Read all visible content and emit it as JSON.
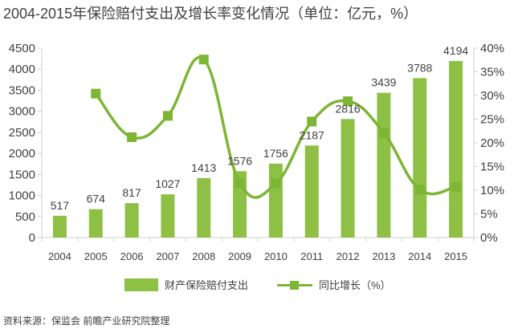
{
  "title": "2004-2015年保险赔付支出及增长率变化情况（单位：亿元，%）",
  "source": "资料来源：保监会 前瞻产业研究院整理",
  "legend": {
    "bar_label": "财产保险赔付支出",
    "line_label": "同比增长（%）"
  },
  "colors": {
    "bar": "#8ec045",
    "line": "#7db534",
    "axis": "#d0d0d0",
    "text": "#404040"
  },
  "chart_data": {
    "type": "bar+line",
    "categories": [
      "2004",
      "2005",
      "2006",
      "2007",
      "2008",
      "2009",
      "2010",
      "2011",
      "2012",
      "2013",
      "2014",
      "2015"
    ],
    "series": [
      {
        "name": "财产保险赔付支出",
        "type": "bar",
        "axis": "left",
        "values": [
          517,
          674,
          817,
          1027,
          1413,
          1576,
          1756,
          2187,
          2816,
          3439,
          3788,
          4194
        ]
      },
      {
        "name": "同比增长（%）",
        "type": "line",
        "axis": "right",
        "values": [
          null,
          30.4,
          21.2,
          25.7,
          37.6,
          11.5,
          11.4,
          24.5,
          28.8,
          22.1,
          10.1,
          10.7
        ]
      }
    ],
    "left_axis": {
      "min": 0,
      "max": 4500,
      "ticks": [
        "0",
        "500",
        "1000",
        "1500",
        "2000",
        "2500",
        "3000",
        "3500",
        "4000",
        "4500"
      ]
    },
    "right_axis": {
      "min": 0,
      "max": 40,
      "ticks": [
        "0%",
        "5%",
        "10%",
        "15%",
        "20%",
        "25%",
        "30%",
        "35%",
        "40%"
      ]
    },
    "grid": false,
    "legend_position": "bottom"
  }
}
